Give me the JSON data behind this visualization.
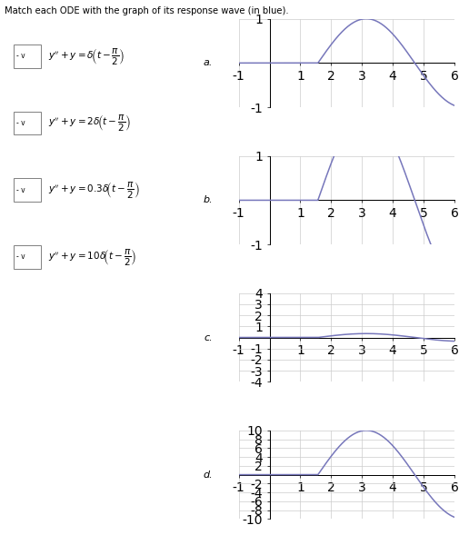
{
  "title": "Match each ODE with the graph of its response wave (in blue).",
  "graph_labels": [
    "a.",
    "b.",
    "c.",
    "d."
  ],
  "xlim": [
    -1,
    6
  ],
  "xticks": [
    -1,
    1,
    2,
    3,
    4,
    5,
    6
  ],
  "graph_a_ylim": [
    -1,
    1
  ],
  "graph_a_yticks": [
    -1,
    1
  ],
  "graph_b_ylim": [
    -1,
    1
  ],
  "graph_b_yticks": [
    -1,
    1
  ],
  "graph_c_ylim": [
    -4,
    4
  ],
  "graph_c_yticks": [
    -4,
    -3,
    -2,
    -1,
    1,
    2,
    3,
    4
  ],
  "graph_d_ylim": [
    -10,
    10
  ],
  "graph_d_yticks": [
    -10,
    -8,
    -6,
    -4,
    -2,
    2,
    4,
    6,
    8,
    10
  ],
  "line_color": "#7777bb",
  "grid_color": "#cccccc",
  "amplitude_a": 1,
  "amplitude_b": 2,
  "amplitude_c": 0.35,
  "amplitude_d": 10
}
